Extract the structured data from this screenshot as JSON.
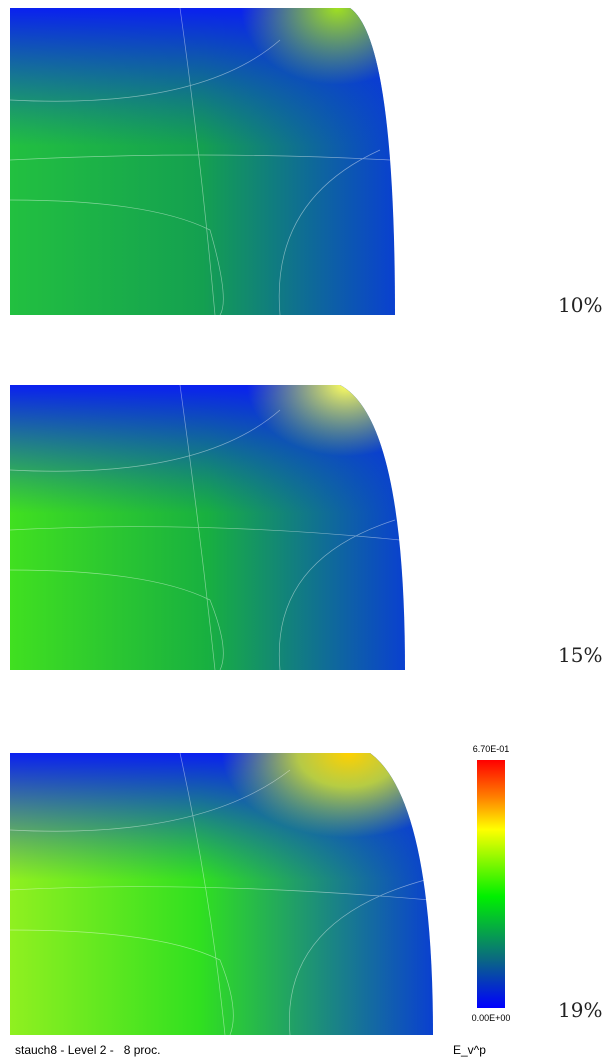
{
  "panels": [
    {
      "label": "10%"
    },
    {
      "label": "15%"
    },
    {
      "label": "19%"
    }
  ],
  "colorbar": {
    "max_label": "6.70E-01",
    "min_label": "0.00E+00"
  },
  "footer": {
    "left": "stauch8 - Level 2 -   8 proc.",
    "right": "E_v^p"
  }
}
